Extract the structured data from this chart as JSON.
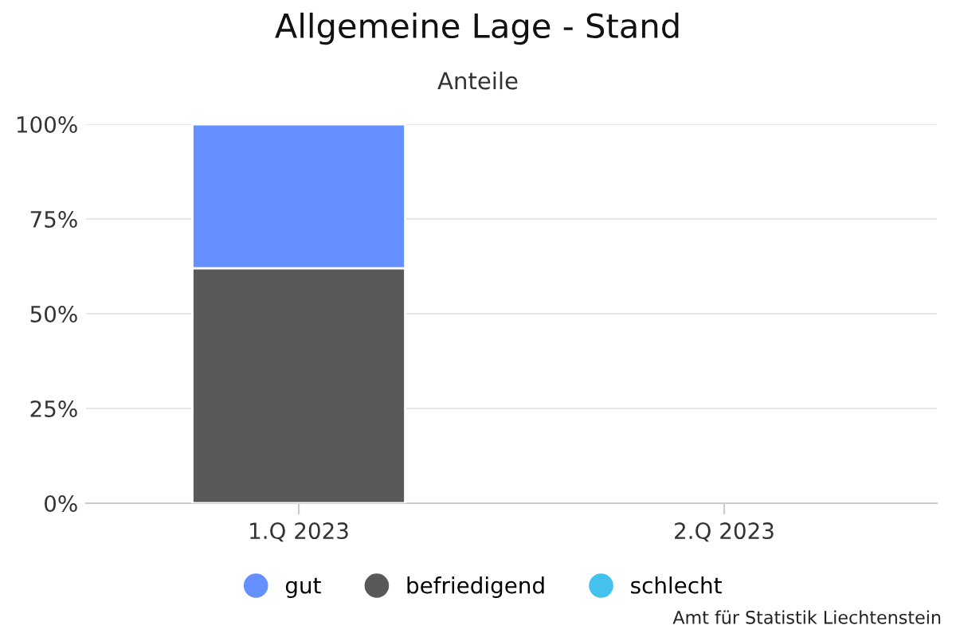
{
  "chart_data": {
    "type": "bar",
    "title": "Allgemeine Lage - Stand",
    "subtitle": "Anteile",
    "categories": [
      "1.Q 2023",
      "2.Q 2023"
    ],
    "series": [
      {
        "name": "schlecht",
        "color": "#44c1ec",
        "values": [
          0,
          null
        ]
      },
      {
        "name": "befriedigend",
        "color": "#595959",
        "values": [
          62,
          null
        ]
      },
      {
        "name": "gut",
        "color": "#6690ff",
        "values": [
          38,
          null
        ]
      }
    ],
    "stacked": true,
    "ylim": [
      0,
      100
    ],
    "yticks": [
      {
        "value": 0,
        "label": "0%"
      },
      {
        "value": 25,
        "label": "25%"
      },
      {
        "value": 50,
        "label": "50%"
      },
      {
        "value": 75,
        "label": "75%"
      },
      {
        "value": 100,
        "label": "100%"
      }
    ],
    "grid": "y",
    "legend": "bottom",
    "marker": "circle",
    "annotations": [
      "Amt für Statistik Liechtenstein"
    ]
  }
}
